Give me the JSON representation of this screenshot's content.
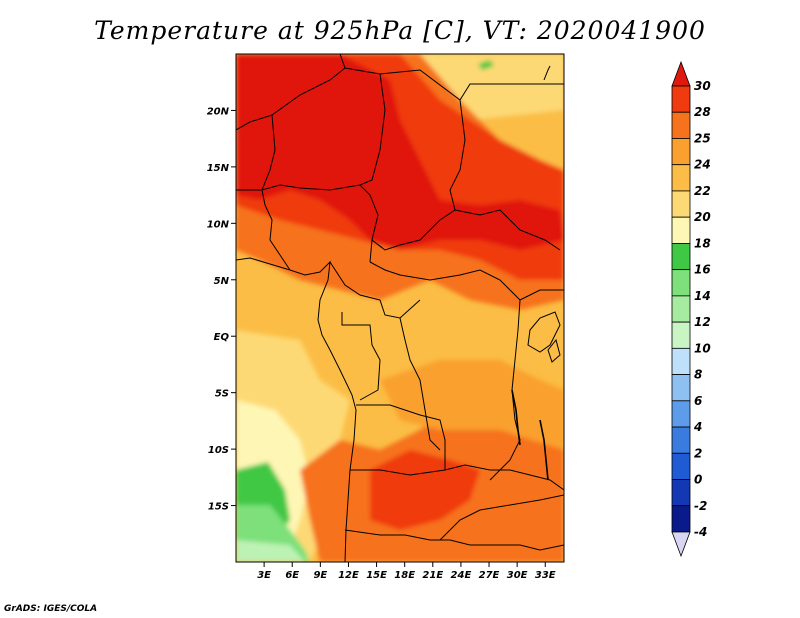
{
  "title": "Temperature at 925hPa [C], VT: 2020041900",
  "footer": "GrADS: IGES/COLA",
  "map": {
    "lon_range": [
      0,
      35
    ],
    "lat_range": [
      -20,
      25
    ],
    "lat_ticks": [
      {
        "value": 20,
        "label": "20N"
      },
      {
        "value": 15,
        "label": "15N"
      },
      {
        "value": 10,
        "label": "10N"
      },
      {
        "value": 5,
        "label": "5N"
      },
      {
        "value": 0,
        "label": "EQ"
      },
      {
        "value": -5,
        "label": "5S"
      },
      {
        "value": -10,
        "label": "10S"
      },
      {
        "value": -15,
        "label": "15S"
      }
    ],
    "lon_ticks": [
      {
        "value": 3,
        "label": "3E"
      },
      {
        "value": 6,
        "label": "6E"
      },
      {
        "value": 9,
        "label": "9E"
      },
      {
        "value": 12,
        "label": "12E"
      },
      {
        "value": 15,
        "label": "15E"
      },
      {
        "value": 18,
        "label": "18E"
      },
      {
        "value": 21,
        "label": "21E"
      },
      {
        "value": 24,
        "label": "24E"
      },
      {
        "value": 27,
        "label": "27E"
      },
      {
        "value": 30,
        "label": "30E"
      },
      {
        "value": 33,
        "label": "33E"
      }
    ],
    "colors": {
      "c30": "#e0190f",
      "c28": "#f03a10",
      "c25": "#f6721d",
      "c24": "#f9a02e",
      "c22": "#fbbd45",
      "c20": "#fdd975",
      "c18": "#fef6b4",
      "green_dark": "#3fc844",
      "green_mid": "#7de07a",
      "green_light": "#bdf2b5"
    }
  },
  "colorbar": {
    "levels": [
      "30",
      "28",
      "25",
      "24",
      "22",
      "20",
      "18",
      "16",
      "14",
      "12",
      "10",
      "8",
      "6",
      "4",
      "2",
      "0",
      "-2",
      "-4"
    ],
    "colors": [
      "#e0190f",
      "#f03a10",
      "#f6721d",
      "#f9a02e",
      "#fbbd45",
      "#fdd975",
      "#fef6b4",
      "#3fc844",
      "#7de07a",
      "#a6eba0",
      "#c9f4c4",
      "#bfe0fa",
      "#8ec0f2",
      "#5d9ceb",
      "#3a7be0",
      "#1f5bd3",
      "#1437b3",
      "#0b1a8a",
      "#d8d6f2"
    ]
  }
}
